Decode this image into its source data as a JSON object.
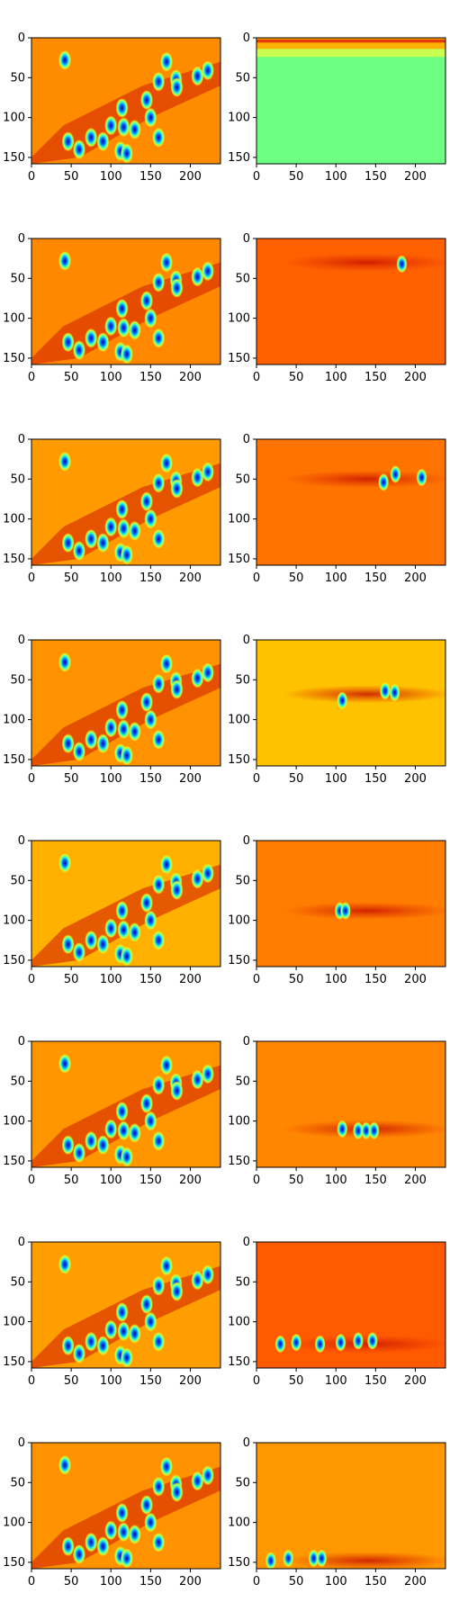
{
  "figure": {
    "rows": 8,
    "cols": 2,
    "colormap": "jet"
  },
  "chart_data": {
    "type": "heatmap",
    "image_size": {
      "width": 238,
      "height": 158
    },
    "x_ticks": [
      0,
      50,
      100,
      150,
      200
    ],
    "y_ticks": [
      0,
      50,
      100,
      150
    ],
    "x_tick_labels": [
      "0",
      "50",
      "100",
      "150",
      "200"
    ],
    "y_tick_labels": [
      "0",
      "50",
      "100",
      "150"
    ],
    "heat_background": "#ff8a00",
    "left_blob_positions": [
      [
        42,
        28
      ],
      [
        170,
        30
      ],
      [
        182,
        52
      ],
      [
        209,
        48
      ],
      [
        160,
        55
      ],
      [
        145,
        78
      ],
      [
        114,
        88
      ],
      [
        100,
        110
      ],
      [
        116,
        112
      ],
      [
        130,
        115
      ],
      [
        75,
        125
      ],
      [
        160,
        125
      ],
      [
        90,
        130
      ],
      [
        46,
        130
      ],
      [
        112,
        142
      ],
      [
        120,
        145
      ],
      [
        60,
        140
      ],
      [
        150,
        100
      ],
      [
        183,
        62
      ],
      [
        222,
        41
      ]
    ],
    "panels": [
      {
        "row": 1,
        "col": 1,
        "kind": "full_image",
        "bg": "#ff8c00"
      },
      {
        "row": 1,
        "col": 2,
        "kind": "top_band",
        "bg": "#6cff82",
        "band_row": 8
      },
      {
        "row": 2,
        "col": 1,
        "kind": "full_image",
        "bg": "#ff8800"
      },
      {
        "row": 2,
        "col": 2,
        "kind": "band",
        "bg": "#ff6000",
        "band_row": 30,
        "blobs": [
          [
            183,
            32
          ]
        ]
      },
      {
        "row": 3,
        "col": 1,
        "kind": "full_image",
        "bg": "#ff9a00"
      },
      {
        "row": 3,
        "col": 2,
        "kind": "band",
        "bg": "#ff7400",
        "band_row": 50,
        "blobs": [
          [
            160,
            54
          ],
          [
            175,
            44
          ],
          [
            208,
            48
          ]
        ]
      },
      {
        "row": 4,
        "col": 1,
        "kind": "full_image",
        "bg": "#ff9200"
      },
      {
        "row": 4,
        "col": 2,
        "kind": "band",
        "bg": "#ffc200",
        "band_row": 68,
        "blobs": [
          [
            108,
            76
          ],
          [
            162,
            64
          ],
          [
            174,
            66
          ]
        ]
      },
      {
        "row": 5,
        "col": 1,
        "kind": "full_image",
        "bg": "#ffb000"
      },
      {
        "row": 5,
        "col": 2,
        "kind": "band",
        "bg": "#ff7e00",
        "band_row": 88,
        "blobs": [
          [
            105,
            88
          ],
          [
            112,
            88
          ]
        ]
      },
      {
        "row": 6,
        "col": 1,
        "kind": "full_image",
        "bg": "#ff9600"
      },
      {
        "row": 6,
        "col": 2,
        "kind": "band",
        "bg": "#ff8600",
        "band_row": 110,
        "blobs": [
          [
            108,
            110
          ],
          [
            128,
            112
          ],
          [
            138,
            112
          ],
          [
            148,
            112
          ]
        ]
      },
      {
        "row": 7,
        "col": 1,
        "kind": "full_image",
        "bg": "#ff9e00"
      },
      {
        "row": 7,
        "col": 2,
        "kind": "band",
        "bg": "#ff5a00",
        "band_row": 128,
        "blobs": [
          [
            30,
            128
          ],
          [
            50,
            126
          ],
          [
            80,
            128
          ],
          [
            106,
            126
          ],
          [
            128,
            124
          ],
          [
            146,
            124
          ]
        ]
      },
      {
        "row": 8,
        "col": 1,
        "kind": "full_image",
        "bg": "#ff9200"
      },
      {
        "row": 8,
        "col": 2,
        "kind": "band",
        "bg": "#ff9800",
        "band_row": 148,
        "blobs": [
          [
            18,
            148
          ],
          [
            40,
            145
          ],
          [
            72,
            145
          ],
          [
            82,
            145
          ]
        ]
      }
    ]
  }
}
